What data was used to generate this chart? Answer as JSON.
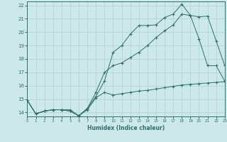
{
  "xlabel": "Humidex (Indice chaleur)",
  "bg_color": "#cce8e8",
  "grid_color": "#b8d8d8",
  "line_color": "#2e6e6e",
  "xlim": [
    0,
    23
  ],
  "ylim": [
    13.7,
    22.3
  ],
  "xticks": [
    0,
    1,
    2,
    3,
    4,
    5,
    6,
    7,
    8,
    9,
    10,
    11,
    12,
    13,
    14,
    15,
    16,
    17,
    18,
    19,
    20,
    21,
    22,
    23
  ],
  "yticks": [
    14,
    15,
    16,
    17,
    18,
    19,
    20,
    21,
    22
  ],
  "line1_x": [
    0,
    1,
    2,
    3,
    4,
    5,
    6,
    7,
    8,
    9,
    10,
    11,
    12,
    13,
    14,
    15,
    16,
    17,
    18,
    19,
    20,
    21,
    22,
    23
  ],
  "line1_y": [
    14.9,
    13.9,
    14.1,
    14.2,
    14.2,
    14.1,
    13.75,
    14.2,
    15.1,
    15.5,
    15.3,
    15.4,
    15.5,
    15.6,
    15.65,
    15.75,
    15.85,
    15.95,
    16.05,
    16.1,
    16.15,
    16.2,
    16.25,
    16.3
  ],
  "line2_x": [
    0,
    1,
    2,
    3,
    4,
    5,
    6,
    7,
    8,
    9,
    10,
    11,
    12,
    13,
    14,
    15,
    16,
    17,
    18,
    19,
    20,
    21,
    22,
    23
  ],
  "line2_y": [
    14.9,
    13.9,
    14.1,
    14.2,
    14.2,
    14.2,
    13.75,
    14.3,
    15.2,
    16.35,
    18.5,
    19.0,
    19.85,
    20.5,
    20.5,
    20.55,
    21.1,
    21.35,
    22.1,
    21.25,
    19.5,
    17.5,
    17.5,
    16.35
  ],
  "line3_x": [
    0,
    1,
    2,
    3,
    4,
    5,
    6,
    7,
    8,
    9,
    10,
    11,
    12,
    13,
    14,
    15,
    16,
    17,
    18,
    19,
    20,
    21,
    22,
    23
  ],
  "line3_y": [
    14.9,
    13.9,
    14.1,
    14.2,
    14.2,
    14.1,
    13.75,
    14.3,
    15.5,
    17.0,
    17.5,
    17.7,
    18.1,
    18.5,
    19.0,
    19.6,
    20.1,
    20.55,
    21.35,
    21.25,
    21.15,
    21.2,
    19.35,
    17.5
  ]
}
